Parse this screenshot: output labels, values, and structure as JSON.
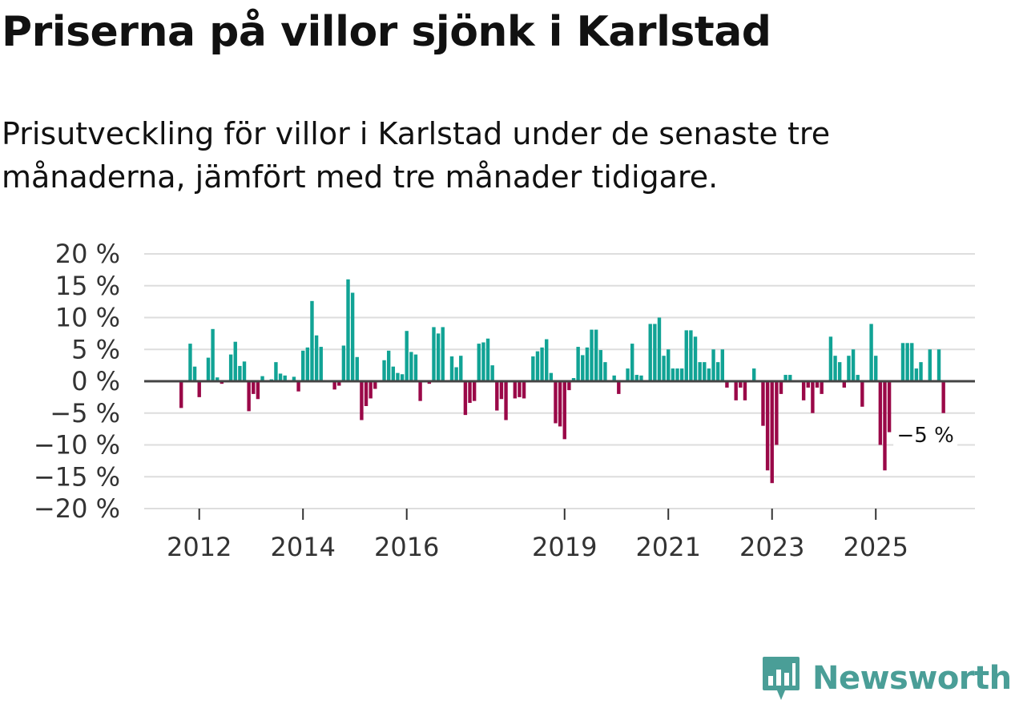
{
  "title": "Priserna på villor sjönk i Karlstad",
  "subtitle": "Prisutveckling för villor i Karlstad under de senaste tre månaderna, jämfört med tre månader tidigare.",
  "brand": {
    "name": "Newsworthy",
    "color": "#4a9e97",
    "icon": "newsworthy-logo-icon"
  },
  "colors": {
    "positive": "#11a395",
    "negative": "#9a0848",
    "grid": "#dddddd",
    "zero": "#444444"
  },
  "chart_data": {
    "type": "bar",
    "title": "Priserna på villor sjönk i Karlstad",
    "ylabel": "",
    "xlabel": "",
    "ylim": [
      -20,
      20
    ],
    "yticks": [
      20,
      15,
      10,
      5,
      0,
      -5,
      -10,
      -15,
      -20
    ],
    "ytick_labels": [
      "20 %",
      "15 %",
      "10 %",
      "5 %",
      "0 %",
      "−5 %",
      "−10 %",
      "−15 %",
      "−20 %"
    ],
    "xticks": [
      {
        "label": "2012",
        "index": 4
      },
      {
        "label": "2014",
        "index": 27
      },
      {
        "label": "2016",
        "index": 50
      },
      {
        "label": "2019",
        "index": 85
      },
      {
        "label": "2021",
        "index": 108
      },
      {
        "label": "2023",
        "index": 131
      },
      {
        "label": "2025",
        "index": 154
      }
    ],
    "annotation": {
      "text": "−5 %",
      "index": 165,
      "value": -5
    },
    "values": [
      -4.2,
      0,
      5.9,
      2.3,
      -2.5,
      0,
      3.7,
      8.2,
      0.6,
      -0.4,
      0,
      4.2,
      6.2,
      2.4,
      3.1,
      -4.7,
      -2,
      -2.8,
      0.8,
      0,
      0.3,
      3,
      1.2,
      0.9,
      0,
      0.7,
      -1.6,
      4.8,
      5.3,
      12.6,
      7.2,
      5.4,
      0,
      0,
      -1.3,
      -0.7,
      5.6,
      16,
      13.9,
      3.8,
      -6.1,
      -3.9,
      -2.7,
      -1.2,
      0,
      3.3,
      4.8,
      2.3,
      1.3,
      1.1,
      7.9,
      4.6,
      4.2,
      -3.1,
      0,
      -0.4,
      8.5,
      7.5,
      8.5,
      0,
      3.9,
      2.2,
      4,
      -5.3,
      -3.4,
      -3.1,
      5.9,
      6.1,
      6.7,
      2.5,
      -4.6,
      -2.8,
      -6.1,
      0,
      -2.7,
      -2.5,
      -2.7,
      0,
      3.9,
      4.7,
      5.3,
      6.6,
      1.3,
      -6.6,
      -7.1,
      -9.1,
      -1.4,
      0.5,
      5.4,
      4.1,
      5.3,
      8.1,
      8.1,
      4.9,
      3,
      0,
      0.9,
      -2,
      0,
      2,
      5.9,
      1,
      0.9,
      0,
      9,
      9,
      10,
      4,
      5,
      2,
      2,
      2,
      8,
      8,
      7,
      3,
      3,
      2,
      5,
      3,
      5,
      -1,
      0,
      -3,
      -1,
      -3,
      0,
      2,
      0,
      -7,
      -14,
      -16,
      -10,
      -2,
      1,
      1,
      0,
      0,
      -3,
      -1,
      -5,
      -1,
      -2,
      0,
      7,
      4,
      3,
      -1,
      4,
      5,
      1,
      -4,
      0,
      9,
      4,
      -10,
      -14,
      -8,
      0,
      0,
      6,
      6,
      6,
      2,
      3,
      0,
      5,
      0,
      5,
      -5
    ]
  }
}
